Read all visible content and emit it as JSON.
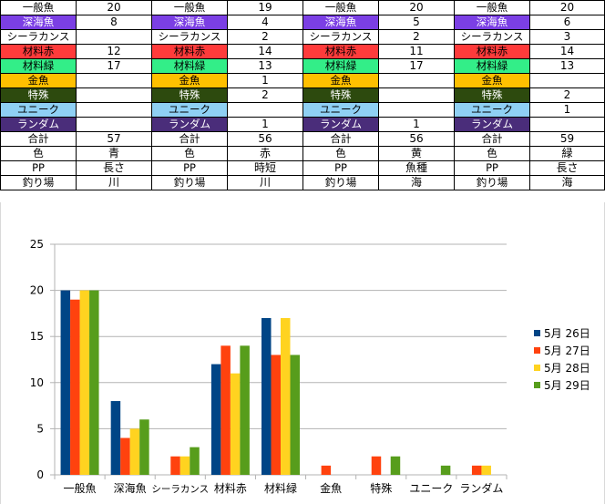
{
  "table": {
    "rows": [
      {
        "label": "一般魚",
        "bg": "#ffffff",
        "dark": false,
        "values": [
          "20",
          "19",
          "20",
          "20"
        ]
      },
      {
        "label": "深海魚",
        "bg": "#7b3fe4",
        "dark": true,
        "values": [
          "8",
          "4",
          "5",
          "6"
        ]
      },
      {
        "label": "シーラカンス",
        "bg": "#ffffff",
        "dark": false,
        "values": [
          "",
          "2",
          "2",
          "3"
        ]
      },
      {
        "label": "材料赤",
        "bg": "#ff3b3b",
        "dark": false,
        "values": [
          "12",
          "14",
          "11",
          "14"
        ]
      },
      {
        "label": "材料緑",
        "bg": "#33ee88",
        "dark": false,
        "values": [
          "17",
          "13",
          "17",
          "13"
        ]
      },
      {
        "label": "金魚",
        "bg": "#ffc000",
        "dark": false,
        "values": [
          "",
          "1",
          "",
          ""
        ]
      },
      {
        "label": "特殊",
        "bg": "#2d4a0e",
        "dark": true,
        "values": [
          "",
          "2",
          "",
          "2"
        ]
      },
      {
        "label": "ユニーク",
        "bg": "#8fd0f4",
        "dark": false,
        "values": [
          "",
          "",
          "",
          "1"
        ]
      },
      {
        "label": "ランダム",
        "bg": "#4a2d7a",
        "dark": true,
        "values": [
          "",
          "1",
          "1",
          ""
        ]
      },
      {
        "label": "合計",
        "bg": "#ffffff",
        "dark": false,
        "values": [
          "57",
          "56",
          "56",
          "59"
        ]
      },
      {
        "label": "色",
        "bg": "#ffffff",
        "dark": false,
        "values": [
          "青",
          "赤",
          "黄",
          "緑"
        ]
      },
      {
        "label": "PP",
        "bg": "#ffffff",
        "dark": false,
        "values": [
          "長さ",
          "時短",
          "魚種",
          "長さ"
        ]
      },
      {
        "label": "釣り場",
        "bg": "#ffffff",
        "dark": false,
        "values": [
          "川",
          "川",
          "海",
          "海"
        ]
      }
    ]
  },
  "chart_data": {
    "type": "bar",
    "categories": [
      "一般魚",
      "深海魚",
      "シーラカンス",
      "材料赤",
      "材料緑",
      "金魚",
      "特殊",
      "ユニーク",
      "ランダム"
    ],
    "series": [
      {
        "name": "5月 26日",
        "color": "#004586",
        "values": [
          20,
          8,
          0,
          12,
          17,
          0,
          0,
          0,
          0
        ]
      },
      {
        "name": "5月 27日",
        "color": "#ff420e",
        "values": [
          19,
          4,
          2,
          14,
          13,
          1,
          2,
          0,
          1
        ]
      },
      {
        "name": "5月 28日",
        "color": "#ffd320",
        "values": [
          20,
          5,
          2,
          11,
          17,
          0,
          0,
          0,
          1
        ]
      },
      {
        "name": "5月 29日",
        "color": "#579d1c",
        "values": [
          20,
          6,
          3,
          14,
          13,
          0,
          2,
          1,
          0
        ]
      }
    ],
    "ylim": [
      0,
      25
    ],
    "yticks": [
      "0",
      "5",
      "10",
      "15",
      "20",
      "25"
    ],
    "grid": true,
    "legend": "right",
    "title": "",
    "xlabel": "",
    "ylabel": ""
  }
}
